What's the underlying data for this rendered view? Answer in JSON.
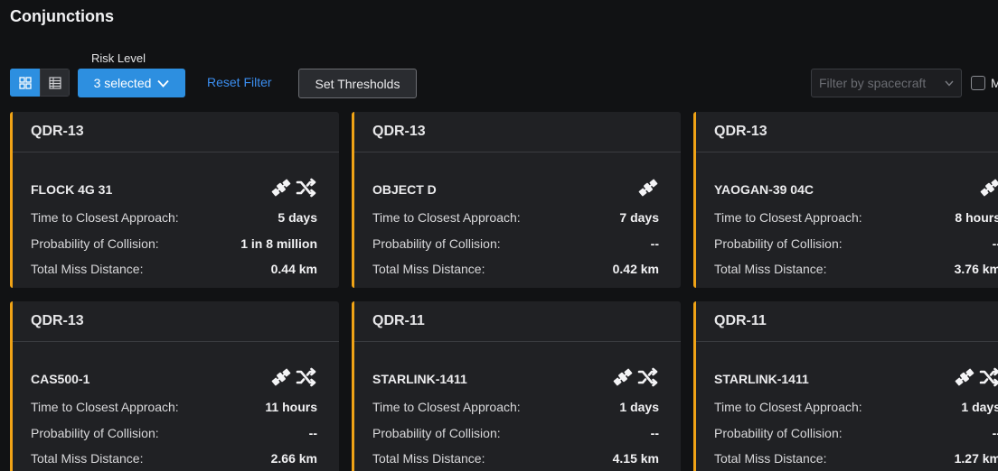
{
  "page": {
    "title": "Conjunctions"
  },
  "toolbar": {
    "risk_level_label": "Risk Level",
    "risk_level_value": "3 selected",
    "reset_filter_label": "Reset Filter",
    "set_thresholds_label": "Set Thresholds",
    "spacecraft_filter_placeholder": "Filter by spacecraft",
    "checkbox_label": "M",
    "active_view": "grid",
    "accent_color": "#2d8fe0"
  },
  "labels": {
    "tca": "Time to Closest Approach:",
    "poc": "Probability of Collision:",
    "tmd": "Total Miss Distance:"
  },
  "cards": [
    {
      "spacecraft": "QDR-13",
      "object": "FLOCK 4G 31",
      "tca": "5 days",
      "poc": "1 in 8 million",
      "tmd": "0.44 km",
      "icons": [
        "satellite-icon",
        "maneuver-shuffle-icon"
      ]
    },
    {
      "spacecraft": "QDR-13",
      "object": "OBJECT D",
      "tca": "7 days",
      "poc": "--",
      "tmd": "0.42 km",
      "icons": [
        "satellite-icon"
      ]
    },
    {
      "spacecraft": "QDR-13",
      "object": "YAOGAN-39 04C",
      "tca": "8 hours",
      "poc": "--",
      "tmd": "3.76 km",
      "icons": [
        "satellite-icon"
      ]
    },
    {
      "spacecraft": "QDR-13",
      "object": "CAS500-1",
      "tca": "11 hours",
      "poc": "--",
      "tmd": "2.66 km",
      "icons": [
        "satellite-icon",
        "maneuver-shuffle-icon"
      ]
    },
    {
      "spacecraft": "QDR-11",
      "object": "STARLINK-1411",
      "tca": "1 days",
      "poc": "--",
      "tmd": "4.15 km",
      "icons": [
        "satellite-icon",
        "maneuver-shuffle-icon"
      ]
    },
    {
      "spacecraft": "QDR-11",
      "object": "STARLINK-1411",
      "tca": "1 days",
      "poc": "--",
      "tmd": "1.27 km",
      "icons": [
        "satellite-icon",
        "maneuver-shuffle-icon"
      ]
    }
  ],
  "risk_color": "#f0a316"
}
